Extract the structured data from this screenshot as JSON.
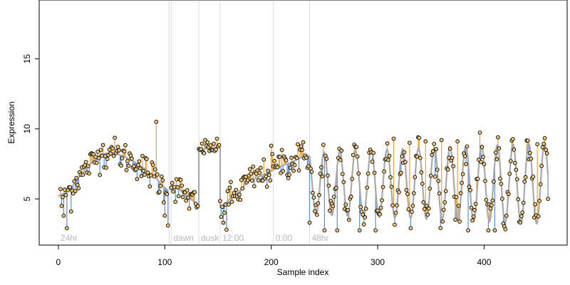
{
  "chart_data": {
    "type": "scatter",
    "title": "",
    "xlabel": "Sample index",
    "ylabel": "Expression",
    "xlim": [
      -18,
      478
    ],
    "ylim": [
      1.7,
      19.2
    ],
    "x_ticks": [
      0,
      100,
      200,
      300,
      400
    ],
    "y_ticks": [
      5,
      10,
      15
    ],
    "grid": false,
    "legend": "none",
    "colors": {
      "fit_line": "#a9a9a9",
      "residual_above": "#e8a33c",
      "residual_below": "#5b8fd6",
      "point_fill": "#f2c97a",
      "point_stroke": "#000000",
      "vline": "#dcdcdc",
      "vline_label": "#b8b8b8"
    },
    "vertical_markers": [
      {
        "x": 104,
        "label": ""
      },
      {
        "x": 106,
        "label": "dawn"
      },
      {
        "x": 132,
        "label": "dusk"
      },
      {
        "x": 152,
        "label": "12:00"
      },
      {
        "x": 202,
        "label": "0:00"
      },
      {
        "x": 236,
        "label": "48hr"
      },
      {
        "x": 0,
        "label": "24hr",
        "label_only": true
      }
    ],
    "segments": [
      {
        "name": "24hr",
        "x_start": 0,
        "x_end": 103
      },
      {
        "name": "dawn",
        "x_start": 106,
        "x_end": 131
      },
      {
        "name": "dusk",
        "x_start": 132,
        "x_end": 151
      },
      {
        "name": "12:00",
        "x_start": 152,
        "x_end": 201
      },
      {
        "name": "0:00",
        "x_start": 202,
        "x_end": 235
      },
      {
        "name": "48hr",
        "x_start": 236,
        "x_end": 460
      }
    ],
    "fit": {
      "baseline_24hr": [
        [
          0,
          5.2
        ],
        [
          10,
          5.6
        ],
        [
          20,
          6.6
        ],
        [
          30,
          7.5
        ],
        [
          40,
          8.2
        ],
        [
          50,
          8.3
        ],
        [
          60,
          8.1
        ],
        [
          70,
          7.7
        ],
        [
          80,
          7.2
        ],
        [
          90,
          6.6
        ],
        [
          100,
          5.8
        ],
        [
          103,
          5.6
        ]
      ],
      "dawn": [
        [
          106,
          6.0
        ],
        [
          115,
          5.6
        ],
        [
          122,
          5.1
        ],
        [
          131,
          4.6
        ]
      ],
      "dusk": [
        [
          132,
          8.5
        ],
        [
          140,
          8.6
        ],
        [
          151,
          8.7
        ]
      ],
      "noon": [
        [
          152,
          4.4
        ],
        [
          165,
          5.2
        ],
        [
          180,
          6.3
        ],
        [
          195,
          6.8
        ],
        [
          201,
          7.0
        ]
      ],
      "midnight": [
        [
          202,
          7.1
        ],
        [
          215,
          7.5
        ],
        [
          230,
          8.0
        ],
        [
          235,
          8.1
        ]
      ],
      "oscillation": {
        "x_start": 236,
        "x_end": 460,
        "period": 14.8,
        "mean": 6.1,
        "amp_start": 2.2,
        "amp_end": 2.9,
        "phase": 2.1
      }
    },
    "points_sample": [
      [
        2,
        5.7
      ],
      [
        3,
        4.5
      ],
      [
        5,
        3.8
      ],
      [
        8,
        2.9
      ],
      [
        12,
        4.1
      ],
      [
        20,
        6.9
      ],
      [
        40,
        8.5
      ],
      [
        50,
        8.7
      ],
      [
        60,
        7.9
      ],
      [
        80,
        7.0
      ],
      [
        92,
        10.5
      ],
      [
        95,
        5.5
      ],
      [
        100,
        3.8
      ],
      [
        103,
        3.1
      ],
      [
        118,
        5.5
      ],
      [
        130,
        4.4
      ],
      [
        133,
        8.5
      ],
      [
        138,
        9.2
      ],
      [
        149,
        9.3
      ],
      [
        155,
        3.3
      ],
      [
        158,
        2.8
      ],
      [
        175,
        6.6
      ],
      [
        186,
        6.8
      ],
      [
        200,
        8.8
      ],
      [
        210,
        8.5
      ],
      [
        225,
        8.9
      ],
      [
        236,
        3.3
      ],
      [
        250,
        2.7
      ],
      [
        262,
        2.7
      ],
      [
        283,
        2.7
      ],
      [
        298,
        2.7
      ],
      [
        315,
        9.3
      ],
      [
        330,
        9.0
      ],
      [
        345,
        9.1
      ],
      [
        360,
        9.2
      ],
      [
        375,
        9.1
      ],
      [
        385,
        2.7
      ],
      [
        404,
        2.7
      ],
      [
        410,
        2.7
      ],
      [
        450,
        8.9
      ],
      [
        460,
        5.0
      ]
    ]
  }
}
